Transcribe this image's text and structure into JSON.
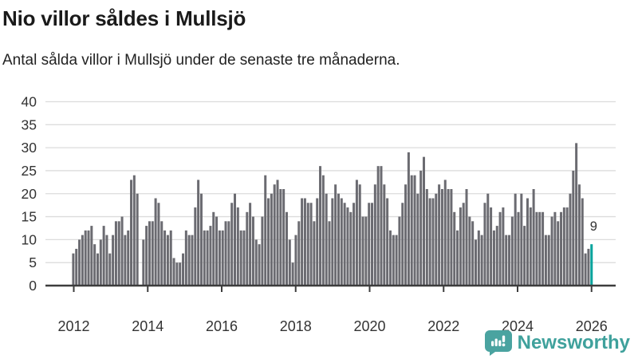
{
  "header": {
    "title": "Nio villor såldes i Mullsjö",
    "subtitle": "Antal sålda villor i Mullsjö under de senaste tre månaderna."
  },
  "chart_data": {
    "type": "bar",
    "title": "Nio villor såldes i Mullsjö",
    "subtitle": "Antal sålda villor i Mullsjö under de senaste tre månaderna.",
    "xlabel": "",
    "ylabel": "",
    "ylim": [
      0,
      40
    ],
    "y_ticks": [
      0,
      5,
      10,
      15,
      20,
      25,
      30,
      35,
      40
    ],
    "x_tick_labels": [
      "2012",
      "2014",
      "2016",
      "2018",
      "2020",
      "2022",
      "2024",
      "2026"
    ],
    "grid": true,
    "frequency": "monthly",
    "start_label": "2012",
    "values": [
      7,
      8,
      10,
      11,
      12,
      12,
      13,
      9,
      7,
      10,
      13,
      11,
      7,
      11,
      14,
      14,
      15,
      11,
      12,
      23,
      24,
      20,
      0,
      10,
      13,
      14,
      14,
      19,
      18,
      14,
      12,
      11,
      12,
      6,
      5,
      5,
      7,
      12,
      11,
      11,
      17,
      23,
      20,
      12,
      12,
      13,
      16,
      15,
      12,
      12,
      14,
      14,
      18,
      20,
      17,
      12,
      12,
      16,
      18,
      15,
      10,
      9,
      15,
      24,
      19,
      20,
      22,
      23,
      21,
      21,
      16,
      10,
      5,
      11,
      14,
      19,
      19,
      18,
      18,
      14,
      19,
      26,
      24,
      20,
      14,
      19,
      22,
      20,
      19,
      18,
      17,
      16,
      18,
      23,
      22,
      15,
      15,
      18,
      18,
      22,
      26,
      26,
      22,
      19,
      12,
      11,
      11,
      15,
      18,
      22,
      29,
      24,
      24,
      20,
      25,
      28,
      21,
      19,
      19,
      20,
      22,
      21,
      23,
      21,
      21,
      16,
      12,
      17,
      18,
      21,
      15,
      14,
      10,
      12,
      11,
      18,
      20,
      17,
      12,
      13,
      16,
      17,
      11,
      11,
      15,
      20,
      16,
      20,
      13,
      19,
      17,
      21,
      16,
      16,
      16,
      11,
      11,
      15,
      16,
      14,
      16,
      17,
      17,
      20,
      25,
      31,
      22,
      19,
      7,
      8,
      9
    ],
    "highlight_last": true,
    "highlight_value": 9,
    "highlight_label": "9",
    "bar_color": "#6b6b71",
    "highlight_color": "#00a39c",
    "grid_color": "#dcdcdc",
    "axis_color": "#3d3d3d",
    "tick_text_color": "#333333"
  },
  "footer": {
    "brand": "Newsworthy",
    "brand_color": "#3fa19c"
  }
}
